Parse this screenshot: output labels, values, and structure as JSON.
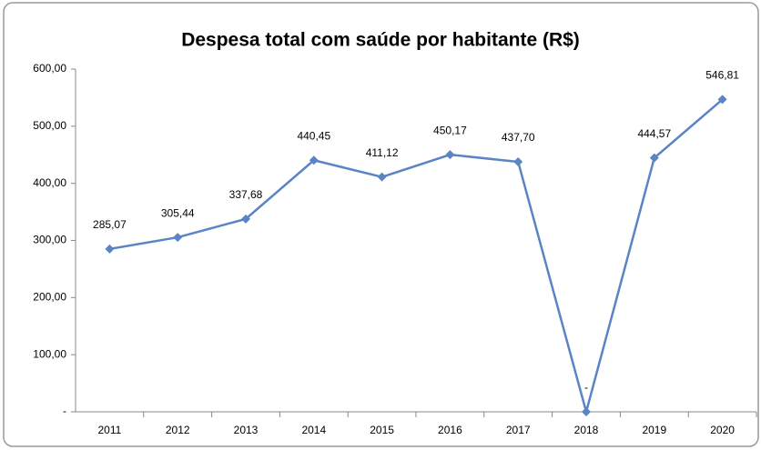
{
  "chart_data": {
    "type": "line",
    "title": "Despesa total com saúde por habitante (R$)",
    "categories": [
      "2011",
      "2012",
      "2013",
      "2014",
      "2015",
      "2016",
      "2017",
      "2018",
      "2019",
      "2020"
    ],
    "series": [
      {
        "color": "#5b84c4",
        "values": [
          285.07,
          305.44,
          337.68,
          440.45,
          411.12,
          450.17,
          437.7,
          0,
          444.57,
          546.81
        ],
        "value_labels": [
          "285,07",
          "305,44",
          "337,68",
          "440,45",
          "411,12",
          "450,17",
          "437,70",
          "-",
          "444,57",
          "546,81"
        ]
      }
    ],
    "ylim": [
      0,
      600
    ],
    "yticks": [
      {
        "value": 0,
        "label": "-"
      },
      {
        "value": 100,
        "label": "100,00"
      },
      {
        "value": 200,
        "label": "200,00"
      },
      {
        "value": 300,
        "label": "300,00"
      },
      {
        "value": 400,
        "label": "400,00"
      },
      {
        "value": 500,
        "label": "500,00"
      },
      {
        "value": 600,
        "label": "600,00"
      }
    ],
    "grid": false
  }
}
